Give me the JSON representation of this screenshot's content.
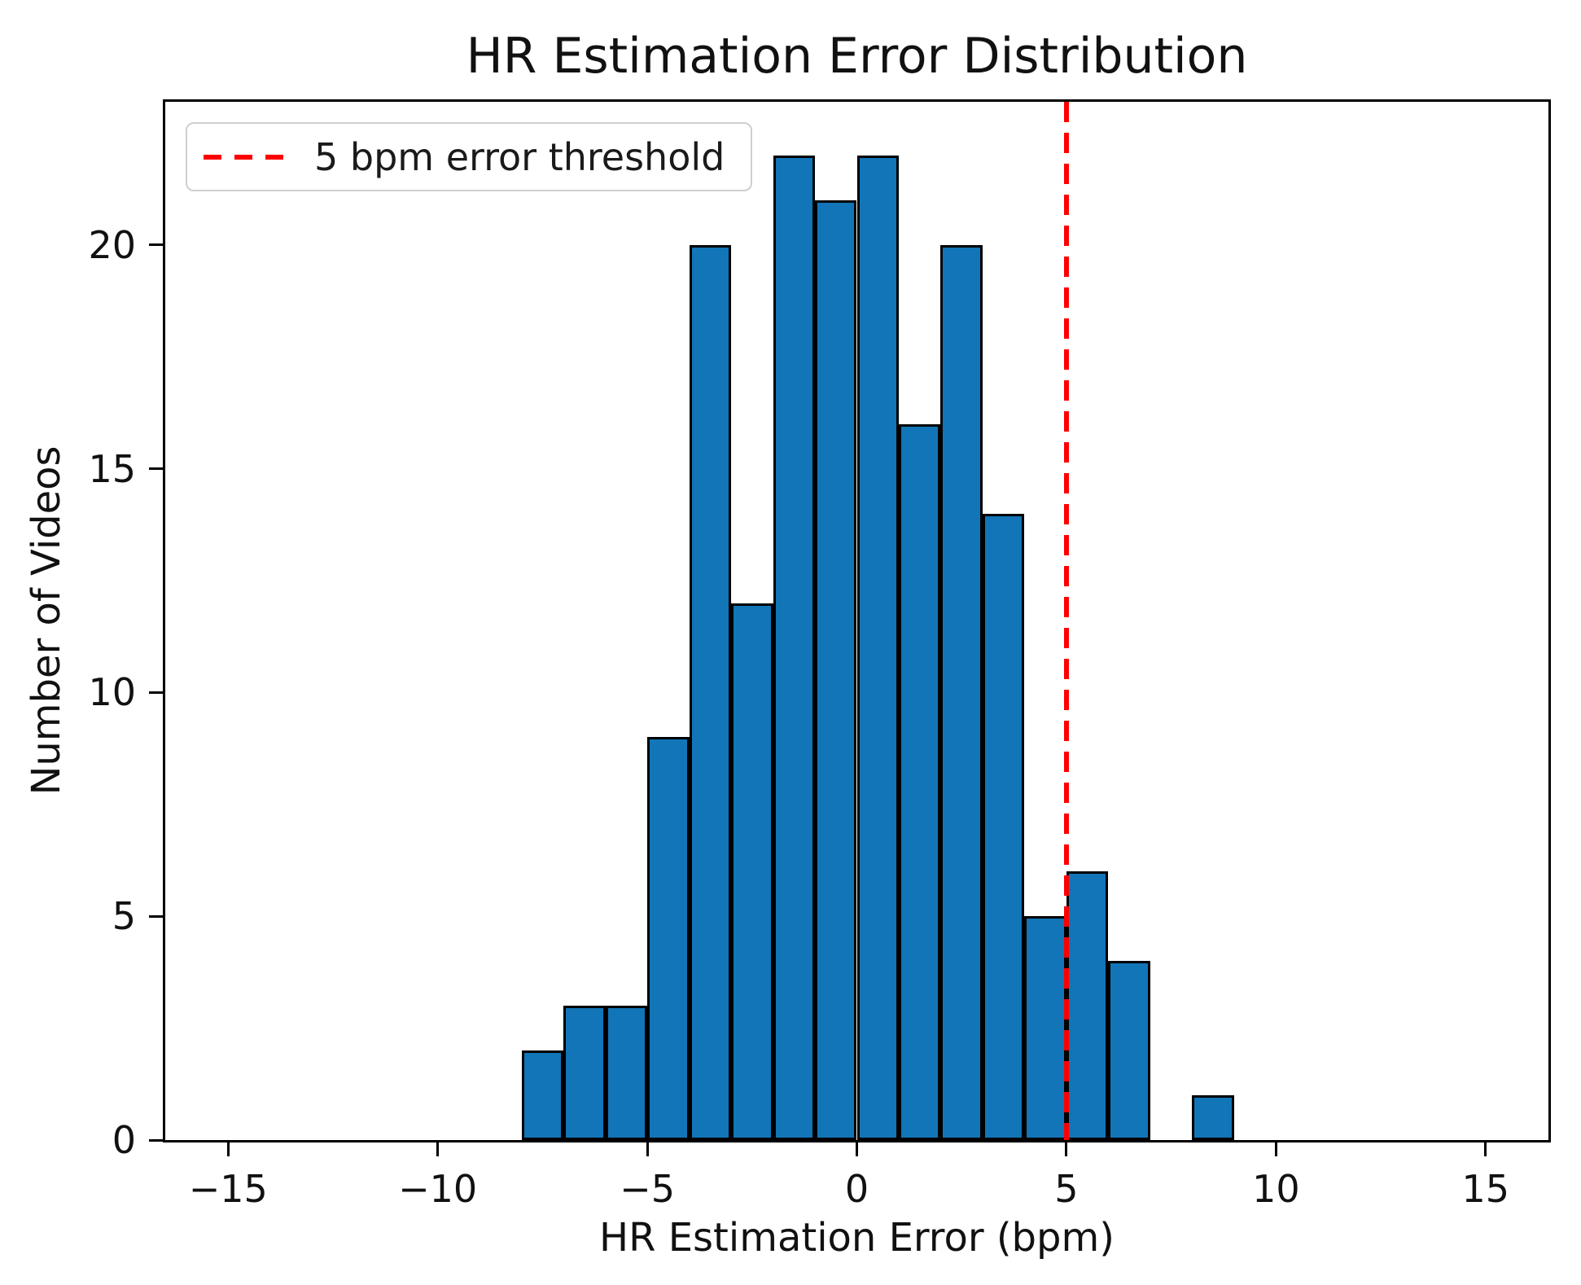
{
  "chart_data": {
    "type": "bar",
    "subtype": "histogram",
    "title": "HR Estimation Error Distribution",
    "xlabel": "HR Estimation Error (bpm)",
    "ylabel": "Number of Videos",
    "bin_edges": [
      -8,
      -7,
      -6,
      -5,
      -4,
      -3,
      -2,
      -1,
      0,
      1,
      2,
      3,
      4,
      5,
      6,
      7,
      8,
      9
    ],
    "counts": [
      2,
      3,
      3,
      9,
      20,
      12,
      22,
      21,
      22,
      16,
      20,
      14,
      5,
      6,
      4,
      0,
      1
    ],
    "xlim": [
      -16.5,
      16.5
    ],
    "ylim": [
      0,
      23.2
    ],
    "x_ticks": {
      "values": [
        -15,
        -10,
        -5,
        0,
        5,
        10,
        15
      ],
      "labels": [
        "−15",
        "−10",
        "−5",
        "0",
        "5",
        "10",
        "15"
      ]
    },
    "y_ticks": {
      "values": [
        0,
        5,
        10,
        15,
        20
      ],
      "labels": [
        "0",
        "5",
        "10",
        "15",
        "20"
      ]
    },
    "grid": false,
    "legend": {
      "position": "upper-left",
      "entries": [
        {
          "label": "5 bpm error threshold",
          "line_style": "dashed",
          "color": "#ff0000"
        }
      ]
    },
    "threshold_line": {
      "x": 5,
      "style": "dashed",
      "color": "#ff0000"
    },
    "colors": {
      "bar_fill": "#1175b8",
      "bar_edge": "#000000",
      "axis": "#000000",
      "threshold": "#ff0000",
      "legend_border": "#cfcfcf"
    }
  }
}
